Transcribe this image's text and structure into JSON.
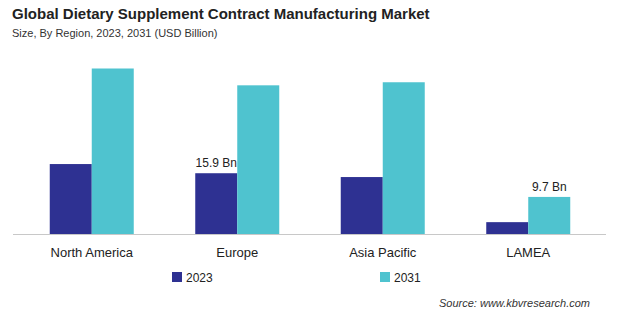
{
  "chart_data": {
    "type": "bar",
    "title": "Global Dietary Supplement Contract Manufacturing Market",
    "subtitle": "Size, By Region, 2023, 2031 (USD Billion)",
    "source": "Source: www.kbvresearch.com",
    "categories": [
      "North America",
      "Europe",
      "Asia Pacific",
      "LAMEA"
    ],
    "series": [
      {
        "name": "2023",
        "color": "#2e3192",
        "values": [
          18.3,
          15.9,
          14.9,
          3.1
        ],
        "value_labels": [
          null,
          "15.9 Bn",
          null,
          null
        ]
      },
      {
        "name": "2031",
        "color": "#4fc3cf",
        "values": [
          43.3,
          38.9,
          39.7,
          9.7
        ],
        "value_labels": [
          null,
          null,
          null,
          "9.7 Bn"
        ]
      }
    ],
    "ylim": [
      0,
      45
    ],
    "data_labels": true,
    "tick_labels": "x",
    "legend": "bottom",
    "grid": false
  }
}
